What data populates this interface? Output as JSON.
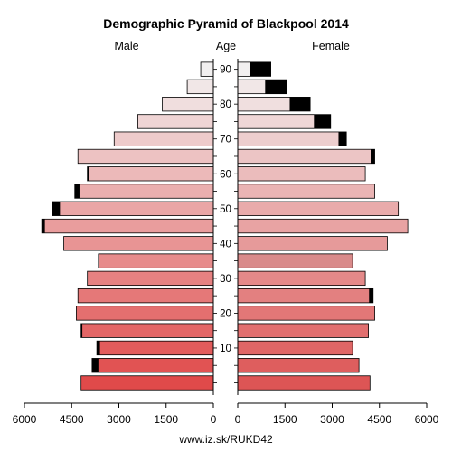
{
  "chart_data": {
    "type": "bar",
    "title": "Demographic Pyramid of Blackpool 2014",
    "left_label": "Male",
    "center_label": "Age",
    "right_label": "Female",
    "footer": "www.iz.sk/RUKD42",
    "x_ticks_left": [
      "6000",
      "4500",
      "3000",
      "1500",
      "0"
    ],
    "x_ticks_right": [
      "0",
      "1500",
      "3000",
      "4500",
      "6000"
    ],
    "x_tick_values": [
      6000,
      4500,
      3000,
      1500,
      0
    ],
    "xlim": [
      0,
      6000
    ],
    "age_tick_labels": [
      "10",
      "20",
      "30",
      "40",
      "50",
      "60",
      "70",
      "80",
      "90"
    ],
    "age_tick_values": [
      10,
      20,
      30,
      40,
      50,
      60,
      70,
      80,
      90
    ],
    "age_groups": [
      "0-4",
      "5-9",
      "10-14",
      "15-19",
      "20-24",
      "25-29",
      "30-34",
      "35-39",
      "40-44",
      "45-49",
      "50-54",
      "55-59",
      "60-64",
      "65-69",
      "70-74",
      "75-79",
      "80-84",
      "85-89",
      "90+"
    ],
    "age_group_start": [
      0,
      5,
      10,
      15,
      20,
      25,
      30,
      35,
      40,
      45,
      50,
      55,
      60,
      65,
      70,
      75,
      80,
      85,
      90
    ],
    "series": [
      {
        "name": "Male",
        "values": [
          4200,
          3850,
          3700,
          4200,
          4350,
          4300,
          4000,
          3650,
          4750,
          5450,
          5100,
          4400,
          4000,
          4300,
          3150,
          2400,
          1620,
          830,
          400
        ],
        "surplus": [
          0,
          200,
          100,
          40,
          0,
          0,
          0,
          0,
          0,
          100,
          230,
          150,
          40,
          0,
          0,
          0,
          0,
          0,
          0
        ]
      },
      {
        "name": "Female",
        "values": [
          4200,
          3850,
          3650,
          4150,
          4350,
          4300,
          4050,
          3650,
          4750,
          5400,
          5100,
          4350,
          4050,
          4350,
          3450,
          2950,
          2300,
          1550,
          1050
        ],
        "surplus": [
          0,
          0,
          0,
          0,
          0,
          130,
          0,
          0,
          0,
          0,
          0,
          0,
          0,
          130,
          250,
          530,
          650,
          680,
          650
        ]
      }
    ]
  }
}
